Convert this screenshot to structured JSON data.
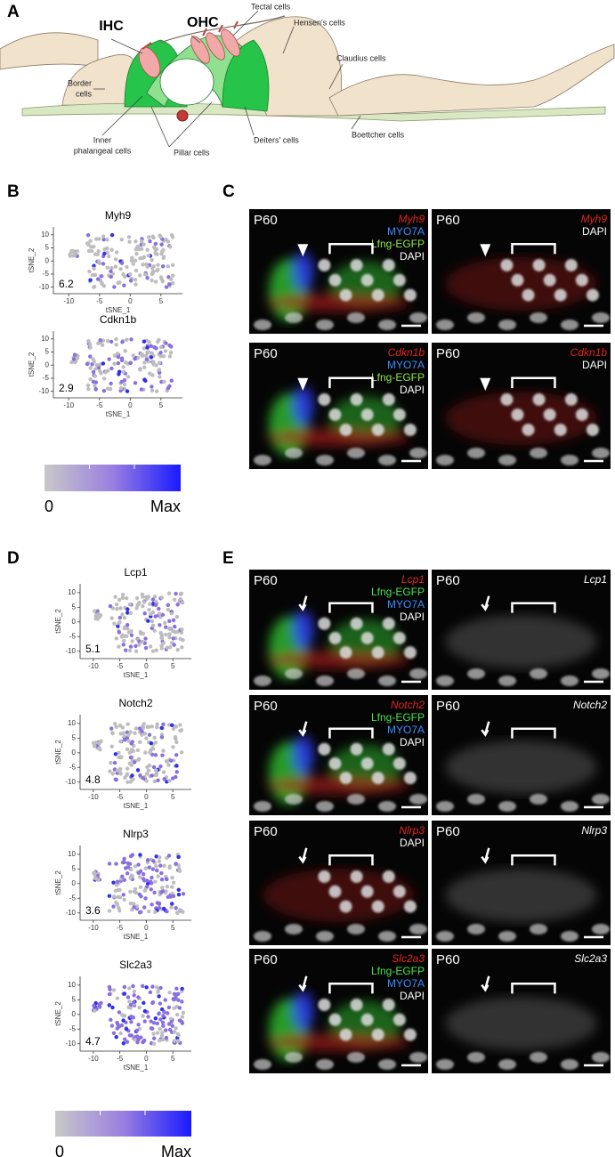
{
  "panel_a": {
    "label": "A",
    "ihc": "IHC",
    "ohc": "OHC",
    "tectal": "Tectal cells",
    "hensen": "Hensen's cells",
    "border": [
      "Border",
      "cells"
    ],
    "claudius": "Claudius cells",
    "inner_phalangeal": [
      "Inner",
      "phalangeal cells"
    ],
    "pillar": "Pillar cells",
    "deiters": "Deiters' cells",
    "boettcher": "Boettcher cells"
  },
  "panel_b": {
    "label": "B",
    "x_label": "tSNE_1",
    "y_label": "tSNE_2",
    "xticks": [
      -10,
      -5,
      0,
      5
    ],
    "yticks": [
      10,
      5,
      0,
      -5,
      -10
    ],
    "plots": [
      {
        "gene": "Myh9",
        "max_value": 6.2
      },
      {
        "gene": "Cdkn1b",
        "max_value": 2.9
      }
    ],
    "scale": {
      "min": "0",
      "max": "Max"
    }
  },
  "panel_c": {
    "label": "C",
    "images": [
      [
        {
          "age": "P60",
          "stains": [
            {
              "text": "Myh9",
              "color": "#e3241c",
              "italic": true
            },
            {
              "text": "MYO7A",
              "color": "#3d8bff",
              "italic": false
            },
            {
              "text": "Lfng-EGFP",
              "color": "#8ee64a",
              "italic": false
            },
            {
              "text": "DAPI",
              "color": "#ffffff",
              "italic": false
            }
          ]
        },
        {
          "age": "P60",
          "stains": [
            {
              "text": "Myh9",
              "color": "#e3241c",
              "italic": true
            },
            {
              "text": "DAPI",
              "color": "#ffffff",
              "italic": false
            }
          ]
        }
      ],
      [
        {
          "age": "P60",
          "stains": [
            {
              "text": "Cdkn1b",
              "color": "#e3241c",
              "italic": true
            },
            {
              "text": "MYO7A",
              "color": "#3d8bff",
              "italic": false
            },
            {
              "text": "Lfng-EGFP",
              "color": "#8ee64a",
              "italic": false
            },
            {
              "text": "DAPI",
              "color": "#ffffff",
              "italic": false
            }
          ]
        },
        {
          "age": "P60",
          "stains": [
            {
              "text": "Cdkn1b",
              "color": "#e3241c",
              "italic": true
            },
            {
              "text": "DAPI",
              "color": "#ffffff",
              "italic": false
            }
          ]
        }
      ]
    ]
  },
  "panel_d": {
    "label": "D",
    "x_label": "tSNE_1",
    "y_label": "tSNE_2",
    "xticks": [
      -10,
      -5,
      0,
      5
    ],
    "yticks": [
      10,
      5,
      0,
      -5,
      -10
    ],
    "plots": [
      {
        "gene": "Lcp1",
        "max_value": 5.1
      },
      {
        "gene": "Notch2",
        "max_value": 4.8
      },
      {
        "gene": "Nlrp3",
        "max_value": 3.6
      },
      {
        "gene": "Slc2a3",
        "max_value": 4.7
      }
    ],
    "scale": {
      "min": "0",
      "max": "Max"
    }
  },
  "panel_e": {
    "label": "E",
    "images": [
      [
        {
          "age": "P60",
          "stains": [
            {
              "text": "Lcp1",
              "color": "#e3241c",
              "italic": true
            },
            {
              "text": "Lfng-EGFP",
              "color": "#4be04b",
              "italic": false
            },
            {
              "text": "MYO7A",
              "color": "#3d8bff",
              "italic": false
            },
            {
              "text": "DAPI",
              "color": "#ffffff",
              "italic": false
            }
          ]
        },
        {
          "age": "P60",
          "stains": [
            {
              "text": "Lcp1",
              "color": "#ffffff",
              "italic": true
            }
          ]
        }
      ],
      [
        {
          "age": "P60",
          "stains": [
            {
              "text": "Notch2",
              "color": "#e3241c",
              "italic": true
            },
            {
              "text": "Lfng-EGFP",
              "color": "#4be04b",
              "italic": false
            },
            {
              "text": "MYO7A",
              "color": "#3d8bff",
              "italic": false
            },
            {
              "text": "DAPI",
              "color": "#ffffff",
              "italic": false
            }
          ]
        },
        {
          "age": "P60",
          "stains": [
            {
              "text": "Notch2",
              "color": "#ffffff",
              "italic": true
            }
          ]
        }
      ],
      [
        {
          "age": "P60",
          "stains": [
            {
              "text": "Nlrp3",
              "color": "#e3241c",
              "italic": true
            },
            {
              "text": "DAPI",
              "color": "#ffffff",
              "italic": false
            }
          ]
        },
        {
          "age": "P60",
          "stains": [
            {
              "text": "Nlrp3",
              "color": "#ffffff",
              "italic": true
            }
          ]
        }
      ],
      [
        {
          "age": "P60",
          "stains": [
            {
              "text": "Slc2a3",
              "color": "#e3241c",
              "italic": true
            },
            {
              "text": "Lfng-EGFP",
              "color": "#4be04b",
              "italic": false
            },
            {
              "text": "MYO7A",
              "color": "#3d8bff",
              "italic": false
            },
            {
              "text": "DAPI",
              "color": "#ffffff",
              "italic": false
            }
          ]
        },
        {
          "age": "P60",
          "stains": [
            {
              "text": "Slc2a3",
              "color": "#ffffff",
              "italic": true
            }
          ]
        }
      ]
    ]
  }
}
